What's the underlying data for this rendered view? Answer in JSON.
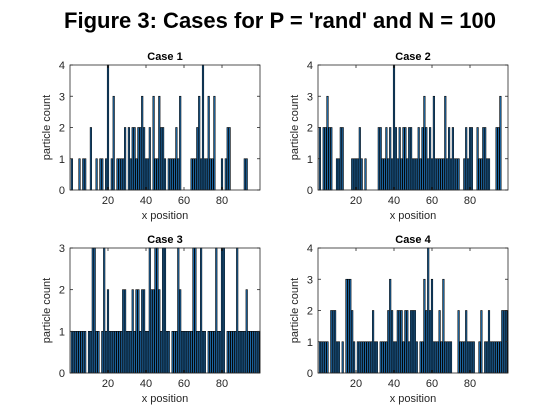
{
  "figure": {
    "title": "Figure 3: Cases for P = 'rand' and N = 100"
  },
  "style": {
    "bar_fill": "#1f6fb0",
    "bar_edge": "#000000",
    "axes_color": "#262626"
  },
  "chart_data": [
    {
      "type": "bar",
      "title": "Case 1",
      "xlabel": "x position",
      "ylabel": "particle count",
      "xlim": [
        0,
        100
      ],
      "ylim": [
        0,
        4
      ],
      "xticks": [
        20,
        40,
        60,
        80
      ],
      "yticks": [
        0,
        1,
        2,
        3,
        4
      ],
      "x_start": 1,
      "values": [
        1,
        0,
        0,
        0,
        1,
        0,
        1,
        1,
        0,
        0,
        2,
        0,
        0,
        1,
        0,
        1,
        1,
        0,
        1,
        4,
        0,
        1,
        3,
        0,
        1,
        1,
        1,
        1,
        2,
        0,
        2,
        1,
        2,
        2,
        1,
        2,
        2,
        3,
        2,
        1,
        1,
        2,
        0,
        3,
        1,
        1,
        3,
        2,
        2,
        1,
        0,
        1,
        1,
        1,
        1,
        2,
        1,
        3,
        0,
        0,
        0,
        0,
        0,
        1,
        1,
        1,
        2,
        3,
        1,
        4,
        1,
        1,
        3,
        1,
        1,
        3,
        0,
        0,
        0,
        1,
        0,
        1,
        2,
        2,
        0,
        0,
        0,
        0,
        0,
        0,
        0,
        1,
        1,
        0,
        0,
        0,
        0,
        0,
        0,
        0
      ]
    },
    {
      "type": "bar",
      "title": "Case 2",
      "xlabel": "x position",
      "ylabel": "particle count",
      "xlim": [
        0,
        100
      ],
      "ylim": [
        0,
        4
      ],
      "xticks": [
        20,
        40,
        60,
        80
      ],
      "yticks": [
        0,
        1,
        2,
        3,
        4
      ],
      "x_start": 1,
      "values": [
        2,
        0,
        2,
        2,
        3,
        2,
        2,
        0,
        0,
        1,
        1,
        2,
        2,
        0,
        0,
        0,
        0,
        1,
        1,
        1,
        1,
        2,
        1,
        0,
        1,
        0,
        0,
        0,
        0,
        0,
        0,
        2,
        2,
        1,
        1,
        2,
        1,
        2,
        1,
        4,
        2,
        1,
        2,
        1,
        2,
        2,
        1,
        2,
        2,
        1,
        1,
        1,
        2,
        1,
        2,
        3,
        2,
        1,
        2,
        1,
        3,
        1,
        1,
        1,
        1,
        1,
        3,
        1,
        2,
        1,
        2,
        1,
        1,
        1,
        0,
        0,
        1,
        2,
        1,
        2,
        2,
        0,
        0,
        2,
        1,
        1,
        2,
        2,
        1,
        1,
        0,
        0,
        0,
        2,
        2,
        3,
        0,
        0,
        0,
        0
      ]
    },
    {
      "type": "bar",
      "title": "Case 3",
      "xlabel": "x position",
      "ylabel": "particle count",
      "xlim": [
        0,
        100
      ],
      "ylim": [
        0,
        3
      ],
      "xticks": [
        20,
        40,
        60,
        80
      ],
      "yticks": [
        0,
        1,
        2,
        3
      ],
      "x_start": 1,
      "values": [
        1,
        1,
        1,
        1,
        1,
        1,
        1,
        1,
        0,
        1,
        1,
        3,
        3,
        1,
        1,
        0,
        1,
        3,
        1,
        2,
        1,
        1,
        1,
        1,
        1,
        1,
        1,
        2,
        2,
        1,
        1,
        1,
        2,
        1,
        2,
        2,
        1,
        2,
        2,
        1,
        1,
        3,
        2,
        2,
        3,
        3,
        2,
        1,
        3,
        3,
        1,
        1,
        0,
        1,
        1,
        1,
        3,
        2,
        1,
        1,
        1,
        1,
        1,
        1,
        3,
        3,
        1,
        1,
        3,
        1,
        1,
        0,
        1,
        1,
        1,
        1,
        3,
        1,
        1,
        3,
        3,
        0,
        1,
        1,
        1,
        1,
        1,
        3,
        1,
        1,
        1,
        1,
        2,
        1,
        1,
        1,
        1,
        1,
        1,
        1
      ]
    },
    {
      "type": "bar",
      "title": "Case 4",
      "xlabel": "x position",
      "ylabel": "particle count",
      "xlim": [
        0,
        100
      ],
      "ylim": [
        0,
        4
      ],
      "xticks": [
        20,
        40,
        60,
        80
      ],
      "yticks": [
        0,
        1,
        2,
        3,
        4
      ],
      "x_start": 1,
      "values": [
        1,
        1,
        1,
        1,
        1,
        0,
        2,
        2,
        2,
        1,
        1,
        0,
        1,
        0,
        3,
        3,
        3,
        2,
        1,
        0,
        1,
        1,
        1,
        1,
        1,
        1,
        1,
        1,
        2,
        1,
        1,
        0,
        1,
        1,
        1,
        1,
        2,
        3,
        2,
        1,
        1,
        2,
        2,
        2,
        1,
        2,
        2,
        1,
        2,
        2,
        2,
        1,
        0,
        1,
        1,
        3,
        2,
        4,
        2,
        3,
        1,
        1,
        1,
        2,
        1,
        3,
        1,
        1,
        1,
        1,
        0,
        0,
        0,
        2,
        1,
        1,
        1,
        2,
        1,
        1,
        1,
        1,
        0,
        0,
        1,
        2,
        0,
        1,
        1,
        2,
        1,
        1,
        1,
        1,
        1,
        1,
        2,
        2,
        2,
        2
      ]
    }
  ]
}
